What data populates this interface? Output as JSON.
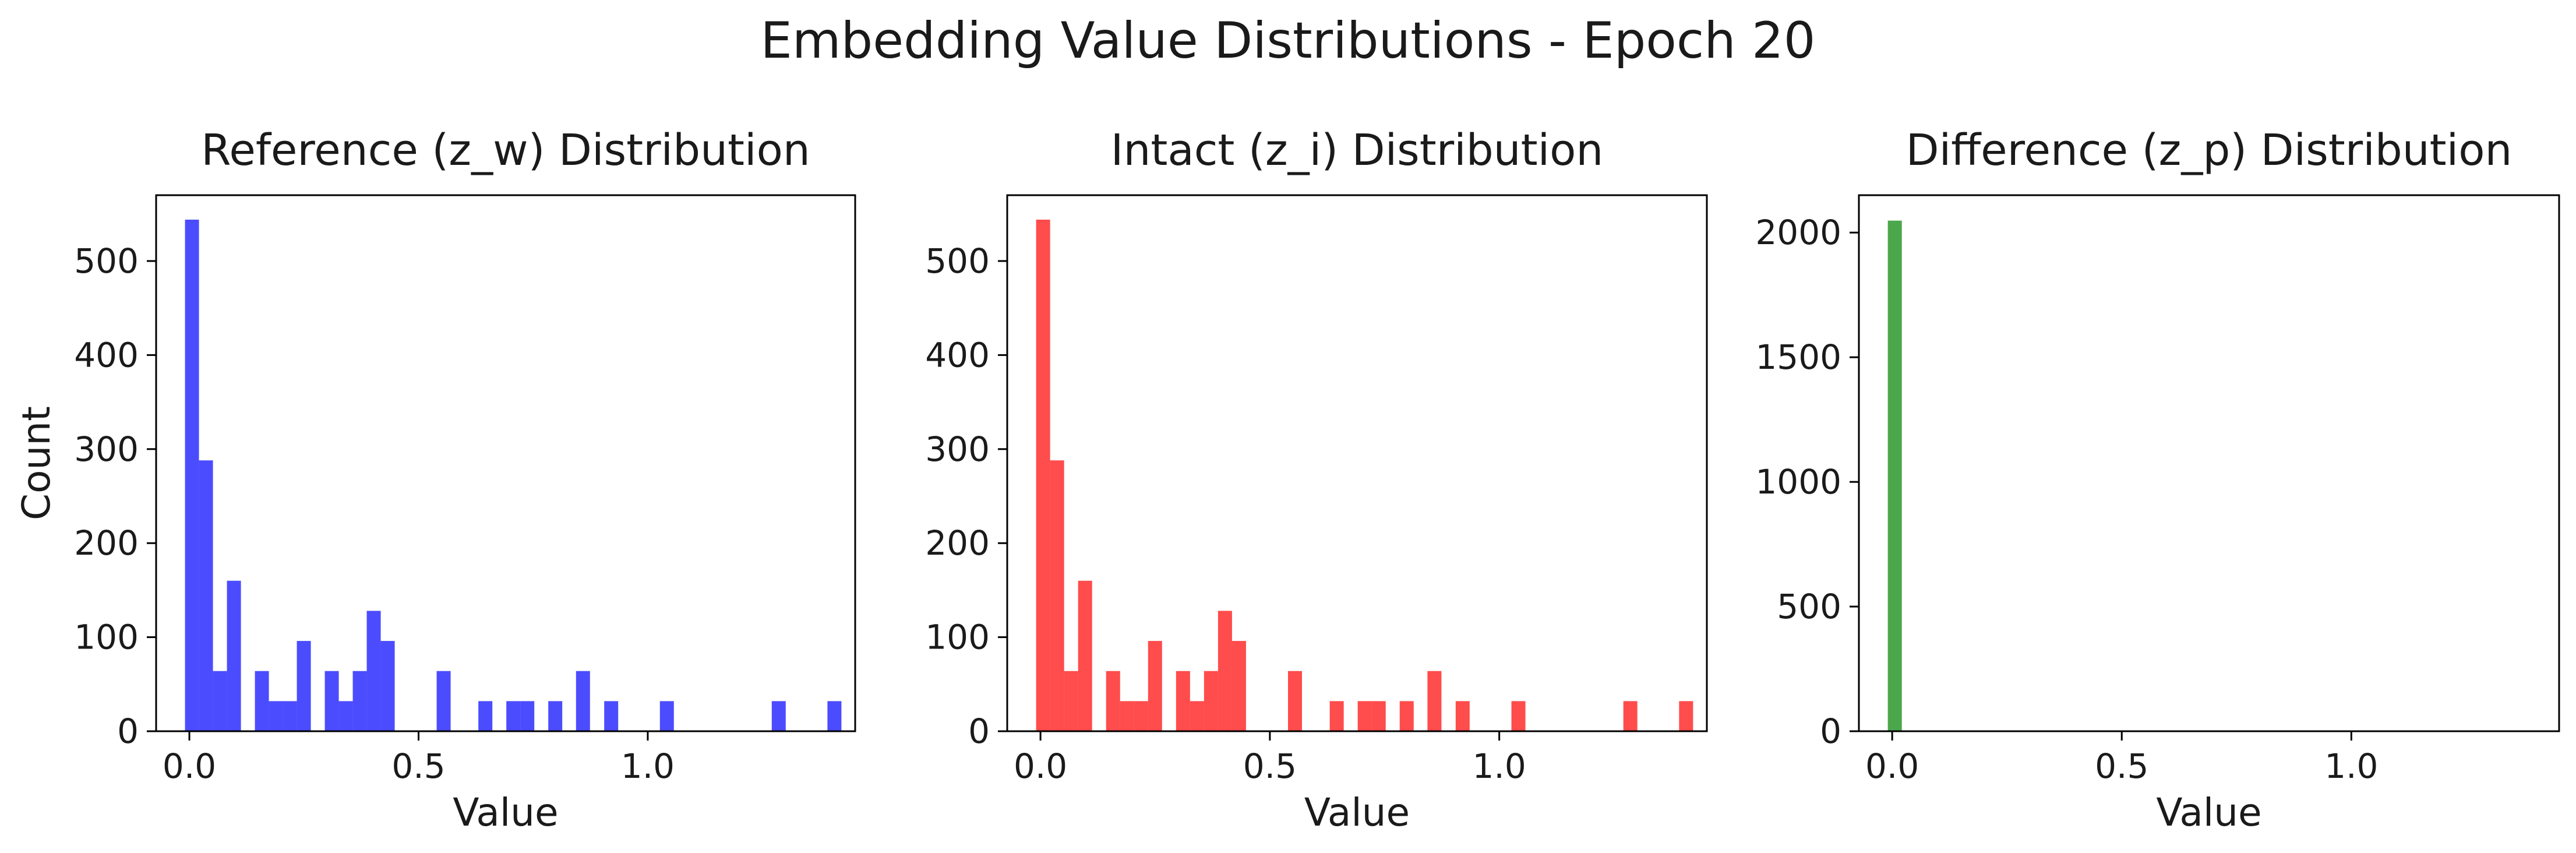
{
  "suptitle": "Embedding Value Distributions - Epoch 20",
  "chart_data": [
    {
      "type": "bar",
      "subtype": "histogram",
      "title": "Reference (z_w) Distribution",
      "xlabel": "Value",
      "ylabel": "Count",
      "color": "#0000ff",
      "alpha": 0.7,
      "xlim": [
        -0.0725,
        1.4525
      ],
      "ylim": [
        0,
        570
      ],
      "xticks": [
        0.0,
        0.5,
        1.0
      ],
      "xtick_labels": [
        "0.0",
        "0.5",
        "1.0"
      ],
      "yticks": [
        0,
        100,
        200,
        300,
        400,
        500
      ],
      "ytick_labels": [
        "0",
        "100",
        "200",
        "300",
        "400",
        "500"
      ],
      "bin_width": 0.0305,
      "bins": [
        {
          "x0": -0.0095,
          "value": 544
        },
        {
          "x0": 0.021,
          "value": 288
        },
        {
          "x0": 0.0515,
          "value": 64
        },
        {
          "x0": 0.082,
          "value": 160
        },
        {
          "x0": 0.143,
          "value": 64
        },
        {
          "x0": 0.1735,
          "value": 32
        },
        {
          "x0": 0.204,
          "value": 32
        },
        {
          "x0": 0.2345,
          "value": 96
        },
        {
          "x0": 0.2955,
          "value": 64
        },
        {
          "x0": 0.326,
          "value": 32
        },
        {
          "x0": 0.3565,
          "value": 64
        },
        {
          "x0": 0.387,
          "value": 128
        },
        {
          "x0": 0.4175,
          "value": 96
        },
        {
          "x0": 0.5395,
          "value": 64
        },
        {
          "x0": 0.6305,
          "value": 32
        },
        {
          "x0": 0.6915,
          "value": 32
        },
        {
          "x0": 0.722,
          "value": 32
        },
        {
          "x0": 0.783,
          "value": 32
        },
        {
          "x0": 0.8435,
          "value": 64
        },
        {
          "x0": 0.905,
          "value": 32
        },
        {
          "x0": 1.0265,
          "value": 32
        },
        {
          "x0": 1.2705,
          "value": 32
        },
        {
          "x0": 1.392,
          "value": 32
        }
      ]
    },
    {
      "type": "bar",
      "subtype": "histogram",
      "title": "Intact (z_i) Distribution",
      "xlabel": "Value",
      "ylabel": "",
      "color": "#ff0000",
      "alpha": 0.7,
      "xlim": [
        -0.0725,
        1.4525
      ],
      "ylim": [
        0,
        570
      ],
      "xticks": [
        0.0,
        0.5,
        1.0
      ],
      "xtick_labels": [
        "0.0",
        "0.5",
        "1.0"
      ],
      "yticks": [
        0,
        100,
        200,
        300,
        400,
        500
      ],
      "ytick_labels": [
        "0",
        "100",
        "200",
        "300",
        "400",
        "500"
      ],
      "bin_width": 0.0305,
      "bins": [
        {
          "x0": -0.0095,
          "value": 544
        },
        {
          "x0": 0.021,
          "value": 288
        },
        {
          "x0": 0.0515,
          "value": 64
        },
        {
          "x0": 0.082,
          "value": 160
        },
        {
          "x0": 0.143,
          "value": 64
        },
        {
          "x0": 0.1735,
          "value": 32
        },
        {
          "x0": 0.204,
          "value": 32
        },
        {
          "x0": 0.2345,
          "value": 96
        },
        {
          "x0": 0.2955,
          "value": 64
        },
        {
          "x0": 0.326,
          "value": 32
        },
        {
          "x0": 0.3565,
          "value": 64
        },
        {
          "x0": 0.387,
          "value": 128
        },
        {
          "x0": 0.4175,
          "value": 96
        },
        {
          "x0": 0.5395,
          "value": 64
        },
        {
          "x0": 0.6305,
          "value": 32
        },
        {
          "x0": 0.6915,
          "value": 32
        },
        {
          "x0": 0.722,
          "value": 32
        },
        {
          "x0": 0.783,
          "value": 32
        },
        {
          "x0": 0.8435,
          "value": 64
        },
        {
          "x0": 0.905,
          "value": 32
        },
        {
          "x0": 1.0265,
          "value": 32
        },
        {
          "x0": 1.2705,
          "value": 32
        },
        {
          "x0": 1.392,
          "value": 32
        }
      ]
    },
    {
      "type": "bar",
      "subtype": "histogram",
      "title": "Difference (z_p) Distribution",
      "xlabel": "Value",
      "ylabel": "",
      "color": "#008000",
      "alpha": 0.7,
      "xlim": [
        -0.0725,
        1.4525
      ],
      "ylim": [
        0,
        2150
      ],
      "xticks": [
        0.0,
        0.5,
        1.0
      ],
      "xtick_labels": [
        "0.0",
        "0.5",
        "1.0"
      ],
      "yticks": [
        0,
        500,
        1000,
        1500,
        2000
      ],
      "ytick_labels": [
        "0",
        "500",
        "1000",
        "1500",
        "2000"
      ],
      "bin_width": 0.0305,
      "bins": [
        {
          "x0": -0.0095,
          "value": 2048
        }
      ]
    }
  ]
}
